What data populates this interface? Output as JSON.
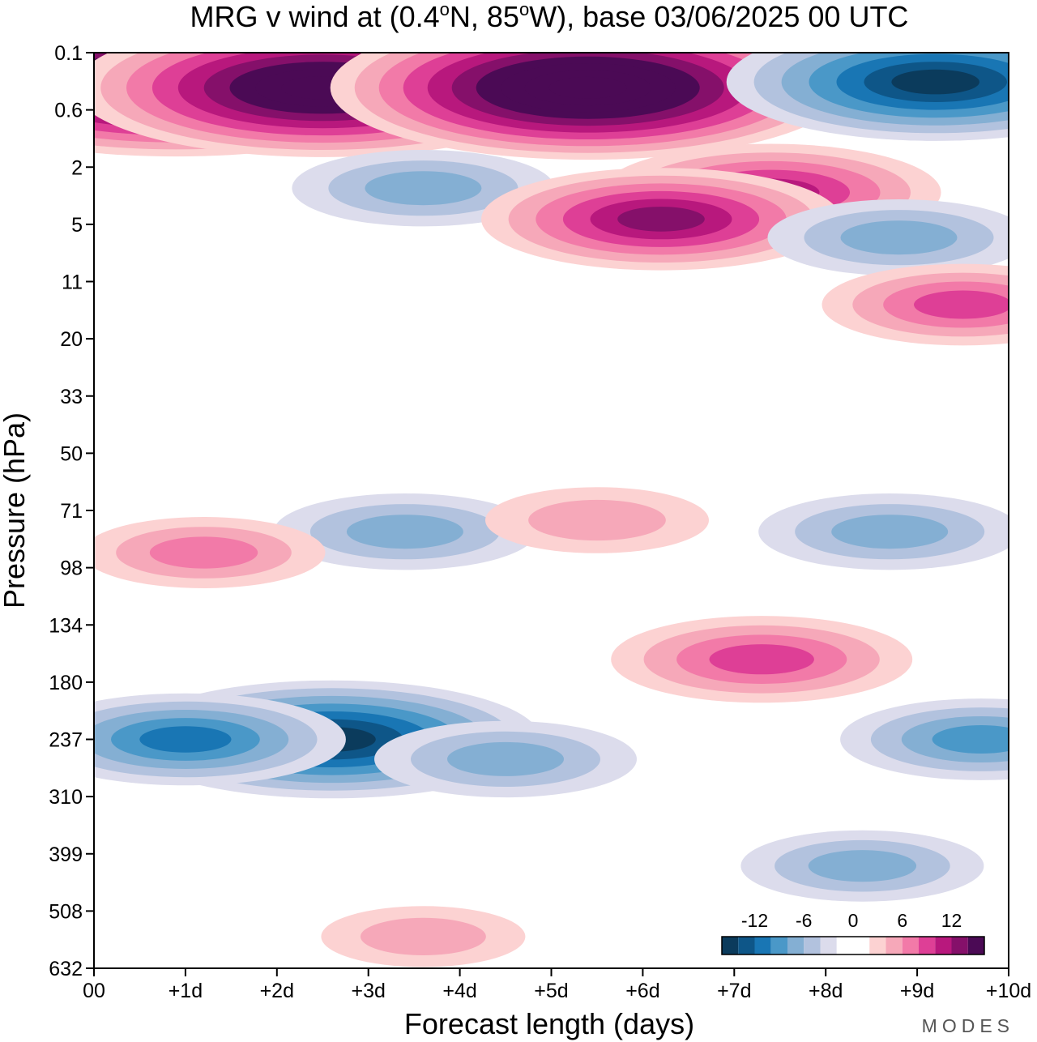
{
  "chart_data": {
    "type": "contour",
    "title": "MRG v wind at (0.4°N, 85°W),  base 03/06/2025  00 UTC",
    "title_parts": [
      "MRG v wind at (0.4",
      "o",
      "N, 85",
      "o",
      "W),  base 03/06/2025  00 UTC"
    ],
    "xlabel": "Forecast length (days)",
    "ylabel": "Pressure (hPa)",
    "x_ticks": [
      "00",
      "+1d",
      "+2d",
      "+3d",
      "+4d",
      "+5d",
      "+6d",
      "+7d",
      "+8d",
      "+9d",
      "+10d"
    ],
    "x_range_days": [
      0,
      10
    ],
    "y_ticks": [
      "0.1",
      "0.6",
      "2",
      "5",
      "11",
      "20",
      "33",
      "50",
      "71",
      "98",
      "134",
      "180",
      "237",
      "310",
      "399",
      "508",
      "632"
    ],
    "y_range_hpa": [
      0.1,
      632
    ],
    "colorbar": {
      "tick_labels": [
        "-12",
        "-6",
        "0",
        "6",
        "12"
      ],
      "tick_values": [
        -12,
        -6,
        0,
        6,
        12
      ],
      "colors": [
        "#0b3b5c",
        "#0e5688",
        "#1976b4",
        "#4a98c8",
        "#84afd3",
        "#b2c2de",
        "#dcdcec",
        "#ffffff",
        "#ffffff",
        "#fcd2d2",
        "#f6a8b9",
        "#f27aa8",
        "#de3f96",
        "#b8187d",
        "#85106a",
        "#4b0a55"
      ],
      "placement": "bottom-right"
    },
    "fields": [
      {
        "day": 2.6,
        "p": 237,
        "v": -14
      },
      {
        "day": 1.0,
        "p": 237,
        "v": -9
      },
      {
        "day": 4.5,
        "p": 260,
        "v": -6
      },
      {
        "day": 9.7,
        "p": 237,
        "v": -7
      },
      {
        "day": 7.3,
        "p": 160,
        "v": 8
      },
      {
        "day": 3.4,
        "p": 80,
        "v": -6
      },
      {
        "day": 1.2,
        "p": 90,
        "v": 5
      },
      {
        "day": 5.5,
        "p": 75,
        "v": 4
      },
      {
        "day": 8.7,
        "p": 80,
        "v": -6
      },
      {
        "day": 8.4,
        "p": 420,
        "v": -5
      },
      {
        "day": 3.6,
        "p": 560,
        "v": 3
      },
      {
        "day": 0.9,
        "p": 0.25,
        "v": 20
      },
      {
        "day": 2.5,
        "p": 0.3,
        "v": 18
      },
      {
        "day": 5.4,
        "p": 0.3,
        "v": 19
      },
      {
        "day": 9.2,
        "p": 0.25,
        "v": -14
      },
      {
        "day": 3.6,
        "p": 2.8,
        "v": -6
      },
      {
        "day": 7.4,
        "p": 3.0,
        "v": 10
      },
      {
        "day": 6.2,
        "p": 4.6,
        "v": 11
      },
      {
        "day": 8.8,
        "p": 6.0,
        "v": -6
      },
      {
        "day": 9.5,
        "p": 14,
        "v": 7
      }
    ]
  },
  "brand": "MODES"
}
